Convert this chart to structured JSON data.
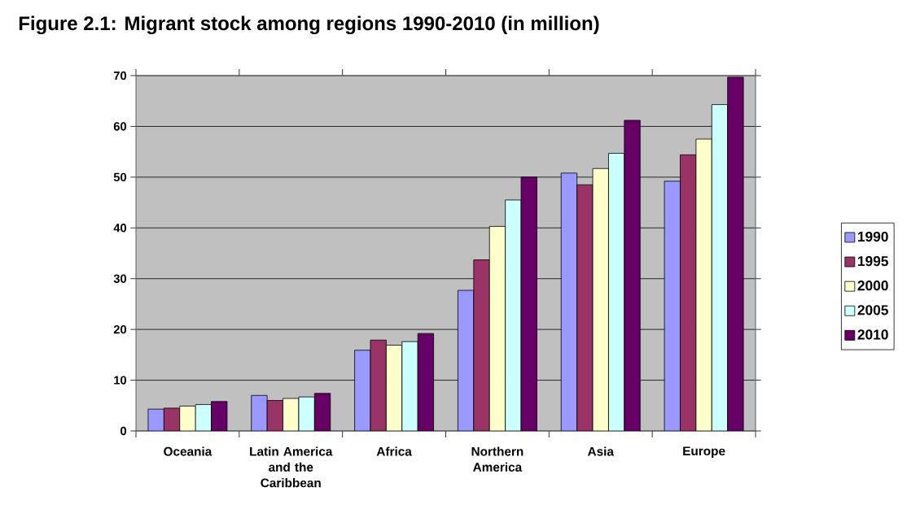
{
  "chart_data": {
    "type": "bar",
    "title": "Figure 2.1: Migrant stock among regions 1990-2010 (in million)",
    "categories": [
      "Oceania",
      "Latin America and the Caribbean",
      "Africa",
      "Northern America",
      "Asia",
      "Europe"
    ],
    "series": [
      {
        "name": "1990",
        "color": "#9999ff",
        "values": [
          4.3,
          7.0,
          15.9,
          27.7,
          50.8,
          49.2
        ]
      },
      {
        "name": "1995",
        "color": "#993366",
        "values": [
          4.5,
          6.0,
          17.9,
          33.7,
          48.5,
          54.4
        ]
      },
      {
        "name": "2000",
        "color": "#ffffcc",
        "values": [
          4.9,
          6.4,
          16.9,
          40.3,
          51.7,
          57.5
        ]
      },
      {
        "name": "2005",
        "color": "#ccffff",
        "values": [
          5.2,
          6.7,
          17.6,
          45.5,
          54.7,
          64.3
        ]
      },
      {
        "name": "2010",
        "color": "#660066",
        "values": [
          5.8,
          7.4,
          19.2,
          50.0,
          61.2,
          69.7
        ]
      }
    ],
    "ylim": [
      0,
      70
    ],
    "yticks": [
      0,
      10,
      20,
      30,
      40,
      50,
      60,
      70
    ],
    "grid": "y",
    "legend": "right"
  }
}
